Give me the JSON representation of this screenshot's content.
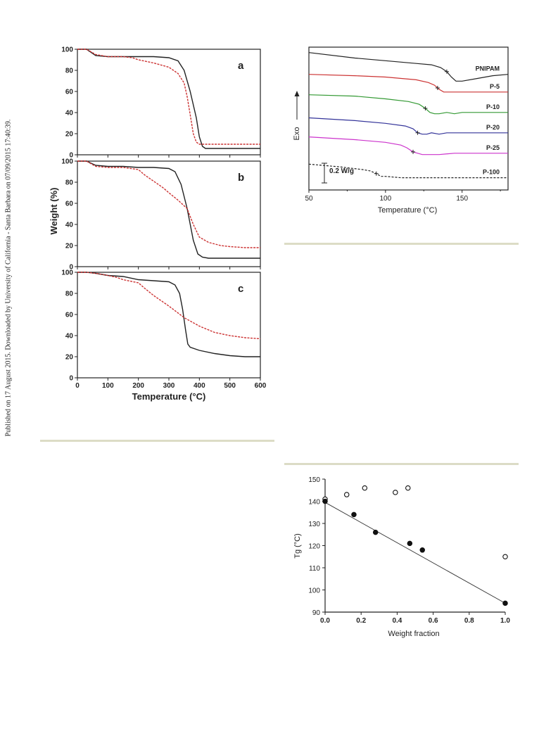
{
  "side_note": "Published on 17 August 2015. Downloaded by University of California - Santa Barbara on 07/09/2015 17:40:39.",
  "chart_data": [
    {
      "id": "tga",
      "type": "line",
      "ylabel": "Weight (%)",
      "xlabel": "Temperature (°C)",
      "xlim": [
        0,
        600
      ],
      "ylim": [
        0,
        100
      ],
      "xticks": [
        0,
        100,
        200,
        300,
        400,
        500,
        600
      ],
      "yticks": [
        0,
        20,
        40,
        60,
        80,
        100
      ],
      "panels": [
        {
          "label": "a",
          "series": [
            {
              "color": "#222222",
              "dashed": false,
              "x": [
                0,
                30,
                60,
                100,
                150,
                200,
                250,
                300,
                330,
                350,
                370,
                390,
                400,
                410,
                420,
                450,
                500,
                600
              ],
              "y": [
                100,
                100,
                94,
                93,
                93,
                93,
                93,
                92,
                89,
                80,
                60,
                35,
                17,
                8,
                6,
                6,
                6,
                6
              ]
            },
            {
              "color": "#cc3333",
              "dashed": true,
              "x": [
                0,
                30,
                60,
                100,
                150,
                180,
                200,
                250,
                300,
                330,
                350,
                360,
                370,
                380,
                390,
                400,
                420,
                450,
                500,
                600
              ],
              "y": [
                100,
                100,
                95,
                93,
                93,
                92,
                90,
                87,
                83,
                77,
                68,
                55,
                38,
                20,
                12,
                10,
                10,
                10,
                10,
                10
              ]
            }
          ]
        },
        {
          "label": "b",
          "series": [
            {
              "color": "#222222",
              "dashed": false,
              "x": [
                0,
                30,
                60,
                100,
                150,
                200,
                250,
                300,
                320,
                340,
                360,
                380,
                395,
                410,
                430,
                470,
                500,
                600
              ],
              "y": [
                100,
                100,
                96,
                95,
                95,
                94,
                94,
                93,
                90,
                78,
                55,
                25,
                12,
                9,
                8,
                8,
                8,
                8
              ]
            },
            {
              "color": "#cc3333",
              "dashed": true,
              "x": [
                0,
                30,
                60,
                100,
                150,
                200,
                220,
                250,
                280,
                300,
                330,
                360,
                380,
                400,
                430,
                470,
                500,
                550,
                600
              ],
              "y": [
                100,
                100,
                95,
                94,
                94,
                92,
                87,
                81,
                75,
                70,
                63,
                55,
                40,
                28,
                23,
                20,
                19,
                18,
                18
              ]
            }
          ]
        },
        {
          "label": "c",
          "series": [
            {
              "color": "#222222",
              "dashed": false,
              "x": [
                0,
                30,
                60,
                100,
                150,
                200,
                250,
                300,
                320,
                335,
                345,
                355,
                362,
                370,
                400,
                450,
                500,
                550,
                600
              ],
              "y": [
                100,
                100,
                99,
                97,
                96,
                93,
                92,
                91,
                88,
                80,
                65,
                45,
                32,
                29,
                26,
                23,
                21,
                20,
                20
              ]
            },
            {
              "color": "#cc3333",
              "dashed": true,
              "x": [
                0,
                30,
                60,
                100,
                130,
                150,
                200,
                220,
                250,
                300,
                350,
                400,
                450,
                500,
                550,
                600
              ],
              "y": [
                100,
                100,
                99,
                97,
                95,
                93,
                90,
                85,
                78,
                68,
                57,
                49,
                43,
                40,
                38,
                37
              ]
            }
          ]
        }
      ]
    },
    {
      "id": "dsc",
      "type": "line",
      "xlabel": "Temperature (°C)",
      "ylabel": "Exo",
      "xlim": [
        50,
        180
      ],
      "xticks": [
        50,
        100,
        150
      ],
      "scale_label": "0.2 W/g",
      "series": [
        {
          "name": "PNIPAM",
          "color": "#222222",
          "dashed": false,
          "tg": 140,
          "x": [
            50,
            80,
            100,
            120,
            130,
            136,
            140,
            143,
            146,
            150,
            160,
            170,
            180
          ],
          "y": [
            76,
            72,
            70,
            68,
            67,
            65,
            62,
            58,
            55,
            55,
            57,
            59,
            60
          ]
        },
        {
          "name": "P-5",
          "color": "#cc3333",
          "dashed": false,
          "tg": 134,
          "x": [
            50,
            80,
            100,
            120,
            128,
            132,
            135,
            138,
            142,
            150,
            160,
            170,
            180
          ],
          "y": [
            60,
            59,
            58,
            56,
            54,
            52,
            49,
            47,
            47,
            47,
            47,
            47,
            47
          ]
        },
        {
          "name": "P-10",
          "color": "#339933",
          "dashed": false,
          "tg": 126,
          "x": [
            50,
            80,
            100,
            115,
            122,
            126,
            129,
            132,
            135,
            140,
            145,
            150,
            160,
            170,
            180
          ],
          "y": [
            45,
            44,
            42,
            40,
            38,
            35,
            32,
            31,
            31,
            32,
            31,
            32,
            32,
            32,
            32
          ]
        },
        {
          "name": "P-20",
          "color": "#333399",
          "dashed": false,
          "tg": 121,
          "x": [
            50,
            80,
            100,
            113,
            118,
            121,
            124,
            127,
            130,
            135,
            140,
            150,
            160,
            170,
            180
          ],
          "y": [
            28,
            26,
            24,
            22,
            20,
            17,
            16,
            16,
            17,
            16,
            17,
            17,
            17,
            17,
            17
          ]
        },
        {
          "name": "P-25",
          "color": "#cc33cc",
          "dashed": false,
          "tg": 118,
          "x": [
            50,
            80,
            100,
            110,
            114,
            118,
            121,
            124,
            128,
            135,
            145,
            160,
            180
          ],
          "y": [
            14,
            12,
            10,
            8,
            6,
            3,
            2,
            1,
            1,
            1,
            2,
            2,
            2
          ]
        },
        {
          "name": "P-100",
          "color": "#222222",
          "dashed": true,
          "tg": 94,
          "x": [
            50,
            70,
            85,
            90,
            94,
            97,
            100,
            110,
            130,
            150,
            180
          ],
          "y": [
            -6,
            -8,
            -10,
            -11,
            -13,
            -15,
            -15,
            -16,
            -16,
            -16,
            -16
          ]
        }
      ]
    },
    {
      "id": "tg",
      "type": "scatter",
      "xlabel": "Weight fraction",
      "ylabel": "Tg (°C)",
      "xlim": [
        0,
        1
      ],
      "ylim": [
        90,
        150
      ],
      "xticks": [
        0,
        0.2,
        0.4,
        0.6,
        0.8,
        1.0
      ],
      "xtick_labels": [
        "0.0",
        "0.2",
        "0.4",
        "0.6",
        "0.8",
        "1.0"
      ],
      "yticks": [
        90,
        100,
        110,
        120,
        130,
        140,
        150
      ],
      "series": [
        {
          "marker": "open",
          "x": [
            0,
            0.12,
            0.22,
            0.39,
            0.46,
            1.0
          ],
          "y": [
            141,
            143,
            146,
            144,
            146,
            115
          ]
        },
        {
          "marker": "filled",
          "x": [
            0,
            0.16,
            0.28,
            0.47,
            0.54,
            1.0
          ],
          "y": [
            140,
            134,
            126,
            121,
            118,
            94
          ]
        }
      ],
      "fit_line": {
        "x": [
          0,
          1
        ],
        "y": [
          139.5,
          94
        ]
      }
    }
  ]
}
